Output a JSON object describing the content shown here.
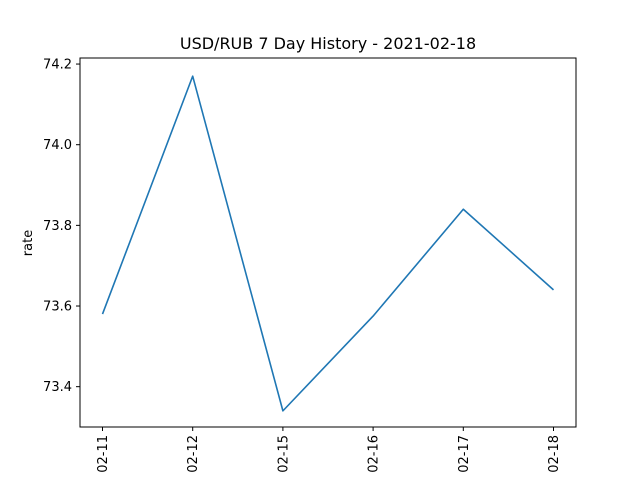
{
  "chart_data": {
    "type": "line",
    "title": "USD/RUB 7 Day History - 2021-02-18",
    "xlabel": "",
    "ylabel": "rate",
    "categories": [
      "02-11",
      "02-12",
      "02-15",
      "02-16",
      "02-17",
      "02-18"
    ],
    "series": [
      {
        "values": [
          73.58,
          74.17,
          73.34,
          73.575,
          73.84,
          73.64
        ]
      }
    ],
    "ylim": [
      73.3,
      74.215
    ],
    "yticks": [
      73.4,
      73.6,
      73.8,
      74.0,
      74.2
    ],
    "ytick_labels": [
      "73.4",
      "73.6",
      "73.8",
      "74.0",
      "74.2"
    ],
    "grid": false,
    "line_color": "#1f77b4"
  }
}
